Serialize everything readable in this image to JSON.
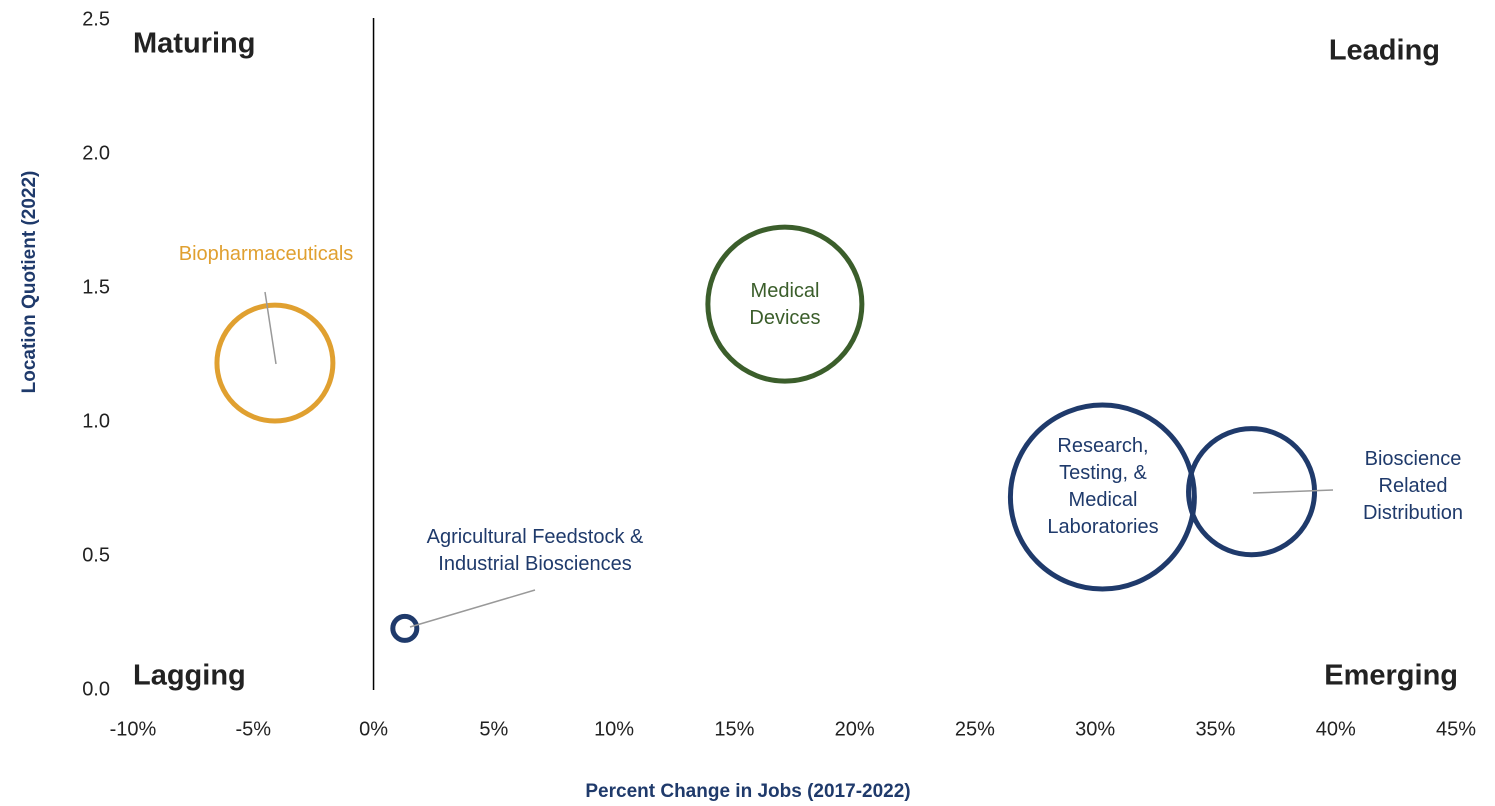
{
  "chart_data": {
    "type": "scatter",
    "x_label": "Percent Change in Jobs (2017-2022)",
    "y_label": "Location Quotient (2022)",
    "xlim": [
      -10,
      45
    ],
    "ylim": [
      0,
      2.5
    ],
    "xticks": [
      {
        "value": -10,
        "label": "-10%"
      },
      {
        "value": -5,
        "label": "-5%"
      },
      {
        "value": 0,
        "label": "0%"
      },
      {
        "value": 5,
        "label": "5%"
      },
      {
        "value": 10,
        "label": "10%"
      },
      {
        "value": 15,
        "label": "15%"
      },
      {
        "value": 20,
        "label": "20%"
      },
      {
        "value": 25,
        "label": "25%"
      },
      {
        "value": 30,
        "label": "30%"
      },
      {
        "value": 35,
        "label": "35%"
      },
      {
        "value": 40,
        "label": "40%"
      },
      {
        "value": 45,
        "label": "45%"
      }
    ],
    "yticks": [
      {
        "value": 0,
        "label": "0.0"
      },
      0.5,
      {
        "value": 1,
        "label": "1.0"
      },
      1.5,
      {
        "value": 2,
        "label": "2.0"
      },
      2.5
    ],
    "quadrants": [
      {
        "text": "Maturing",
        "color": "#e0a030"
      },
      {
        "text": "Leading",
        "color": "#3b5e2b"
      },
      {
        "text": "Lagging",
        "color": "#e85a5a"
      },
      {
        "text": "Emerging",
        "color": "#1f3a6b"
      }
    ],
    "series": [
      {
        "name": [
          "Biopharmaceuticals"
        ],
        "color": "#e0a030",
        "x": [
          -4.1
        ],
        "values": [
          1.22
        ],
        "sizes": [
          33.6
        ]
      },
      {
        "name": [
          "Medical",
          "Devices"
        ],
        "color": "#3b5e2b",
        "x": [
          17.1
        ],
        "values": [
          1.44
        ],
        "sizes": [
          59.3
        ]
      },
      {
        "name": [
          "Research,",
          "Testing, &",
          "Medical",
          "Laboratories"
        ],
        "color": "#1f3a6b",
        "x": [
          30.3
        ],
        "values": [
          0.72
        ],
        "sizes": [
          84.6
        ]
      },
      {
        "name": [
          "Bioscience",
          "Related",
          "Distribution"
        ],
        "color": "#1f3a6b",
        "x": [
          36.5
        ],
        "values": [
          0.74
        ],
        "sizes": [
          39.7
        ]
      },
      {
        "name": [
          "Agricultural Feedstock &",
          "Industrial Biosciences"
        ],
        "color": "#1f3a6b",
        "x": [
          1.3
        ],
        "values": [
          0.23
        ],
        "sizes": [
          1.44
        ]
      }
    ]
  }
}
